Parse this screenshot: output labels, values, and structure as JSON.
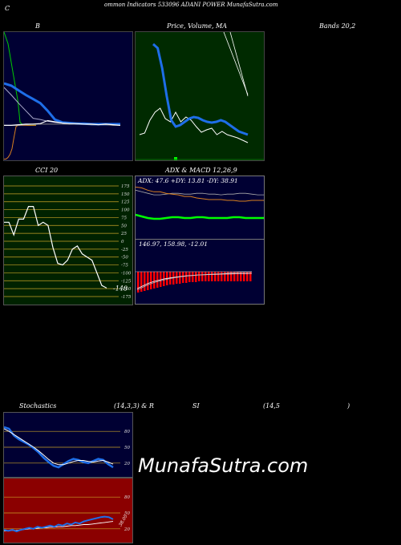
{
  "header": {
    "left_c": "C",
    "title": "ommon  Indicators 533096  ADANI POWER MunafaSutra.com"
  },
  "watermark": "MunafaSutra.com",
  "colors": {
    "navy": "#000033",
    "green": "#002a00",
    "maroon": "#8b0000",
    "blue": "#1e6ee8",
    "orange": "#d9801f",
    "lime": "#00ff00",
    "red": "#ff0000"
  },
  "chart_data": [
    {
      "id": "bollinger",
      "type": "line",
      "title": "B",
      "series": [
        {
          "role": "upper",
          "values": [
            95,
            108,
            122,
            135,
            148,
            150,
            153,
            155,
            156,
            158,
            158,
            158,
            159,
            159,
            159,
            159,
            160
          ]
        },
        {
          "role": "middle",
          "values": [
            88,
            92,
            100,
            108,
            115,
            122,
            135,
            150,
            155,
            156,
            157,
            157,
            158,
            158,
            158,
            158,
            158
          ]
        },
        {
          "role": "lower",
          "values": [
            160,
            160,
            160,
            159,
            158,
            158,
            158,
            158,
            158,
            158,
            158,
            158,
            159,
            159,
            159,
            160,
            160
          ]
        },
        {
          "role": "price",
          "values": [
            160,
            160,
            159,
            158,
            158,
            157,
            152,
            154,
            156,
            157,
            157,
            158,
            158,
            159,
            158,
            159,
            160
          ]
        },
        {
          "role": "orange",
          "values": [
            218,
            218,
            215,
            210,
            200,
            180,
            162,
            160,
            160,
            160,
            160,
            160,
            160,
            160,
            160,
            160,
            160
          ]
        },
        {
          "role": "green",
          "values": [
            0,
            10,
            20,
            40,
            60,
            80,
            100,
            120,
            155,
            158,
            159,
            159,
            160,
            160,
            160,
            160,
            160
          ]
        }
      ]
    },
    {
      "id": "price_ma",
      "type": "line",
      "title": "Price,  Volume,  MA",
      "title2": "Volume",
      "series": [
        {
          "role": "ma_blue",
          "values": [
            15,
            20,
            45,
            80,
            110,
            118,
            116,
            112,
            108,
            106,
            107,
            110,
            112,
            113,
            112,
            110,
            112,
            116,
            120,
            124,
            126,
            128
          ]
        },
        {
          "role": "price",
          "values": [
            128,
            126,
            110,
            100,
            95,
            108,
            112,
            100,
            112,
            106,
            110,
            118,
            125,
            122,
            120,
            128,
            124,
            128,
            130,
            132,
            135,
            138
          ]
        },
        {
          "role": "volume_spike",
          "values": [
            0,
            0,
            0,
            0,
            0,
            0,
            0,
            0,
            0,
            0,
            0,
            0,
            0,
            0,
            0,
            0,
            0,
            0,
            0,
            0,
            0,
            0
          ]
        }
      ]
    },
    {
      "id": "bands",
      "type": "line",
      "title": "Bands 20,2",
      "series": []
    },
    {
      "id": "cci",
      "type": "line",
      "title": "CCI 20",
      "ylim": [
        -175,
        175
      ],
      "y_ticks": [
        "175",
        "150",
        "125",
        "100",
        "75",
        "50",
        "25",
        "0",
        "-25",
        "-50",
        "-75",
        "-100",
        "-125",
        "-150",
        "-175"
      ],
      "last_value_label": "-148",
      "series": [
        {
          "role": "cci",
          "values": [
            60,
            60,
            20,
            70,
            70,
            110,
            110,
            50,
            60,
            50,
            -20,
            -70,
            -75,
            -60,
            -25,
            -15,
            -40,
            -50,
            -60,
            -100,
            -140,
            -148
          ]
        }
      ]
    },
    {
      "id": "adx",
      "type": "line",
      "title": "ADX  & MACD 12,26,9",
      "info": "ADX: 47.6  +DY: 13.81 -DY: 38.91",
      "series": [
        {
          "role": "adx",
          "values": [
            52,
            50,
            48,
            46,
            46,
            47,
            48,
            48,
            47,
            47,
            48,
            48,
            47,
            47,
            46,
            47,
            47,
            48,
            48,
            47,
            46,
            46
          ]
        },
        {
          "role": "plus_di",
          "values": [
            18,
            16,
            14,
            13,
            13,
            14,
            15,
            15,
            14,
            14,
            15,
            15,
            14,
            14,
            14,
            14,
            15,
            15,
            14,
            14,
            14,
            14
          ]
        },
        {
          "role": "minus_di",
          "values": [
            56,
            55,
            52,
            50,
            50,
            48,
            47,
            46,
            44,
            44,
            42,
            41,
            40,
            40,
            40,
            39,
            39,
            38,
            38,
            39,
            39,
            39
          ]
        }
      ]
    },
    {
      "id": "macd",
      "type": "bar",
      "info": "146.97,  158.98,  -12.01",
      "series": [
        {
          "role": "histogram",
          "values": [
            -26,
            -25,
            -24,
            -23,
            -22,
            -21,
            -20,
            -19,
            -18,
            -17,
            -16,
            -16,
            -15,
            -15,
            -14,
            -14,
            -13,
            -13,
            -13,
            -12,
            -12,
            -12,
            -12,
            -12,
            -12,
            -12,
            -12,
            -12,
            -12,
            -12,
            -12,
            -12,
            -12,
            -12,
            -12,
            -12
          ]
        },
        {
          "role": "macd",
          "values": [
            30,
            50,
            70,
            85,
            95,
            105,
            112,
            118,
            124,
            128,
            131,
            134,
            136,
            138,
            140,
            141,
            142,
            143,
            144,
            145,
            146,
            147
          ]
        },
        {
          "role": "signal",
          "values": [
            20,
            40,
            60,
            75,
            88,
            98,
            108,
            115,
            121,
            126,
            130,
            134,
            137,
            140,
            142,
            144,
            146,
            150,
            153,
            155,
            157,
            159
          ]
        }
      ]
    },
    {
      "id": "stochastics",
      "type": "line",
      "title": "Stochastics",
      "params": "(14,3,3) & R",
      "y_ticks": [
        "80",
        "50",
        "20"
      ],
      "series": [
        {
          "role": "k",
          "values": [
            88,
            85,
            72,
            65,
            60,
            55,
            48,
            40,
            30,
            22,
            15,
            12,
            18,
            24,
            28,
            26,
            22,
            20,
            24,
            28,
            26,
            18,
            12
          ]
        },
        {
          "role": "d",
          "values": [
            85,
            80,
            74,
            68,
            62,
            56,
            50,
            43,
            35,
            27,
            20,
            17,
            17,
            20,
            23,
            25,
            25,
            23,
            22,
            24,
            25,
            22,
            18
          ]
        }
      ]
    },
    {
      "id": "rsi",
      "type": "line",
      "title": "SI",
      "params": "(14,5",
      "close_paren": ")",
      "y_ticks": [
        "80",
        "50",
        "20"
      ],
      "value_label": "38.05",
      "series": [
        {
          "role": "rsi",
          "values": [
            18,
            16,
            18,
            15,
            18,
            20,
            22,
            20,
            24,
            22,
            24,
            26,
            24,
            28,
            26,
            30,
            28,
            32,
            30,
            34,
            36,
            38,
            40,
            42,
            43,
            42,
            38
          ]
        },
        {
          "role": "wr",
          "values": [
            16,
            16,
            17,
            17,
            18,
            19,
            20,
            20,
            21,
            22,
            22,
            23,
            23,
            24,
            24,
            25,
            26,
            26,
            27,
            28,
            28,
            29,
            30,
            31,
            32,
            33,
            34
          ]
        }
      ]
    }
  ]
}
